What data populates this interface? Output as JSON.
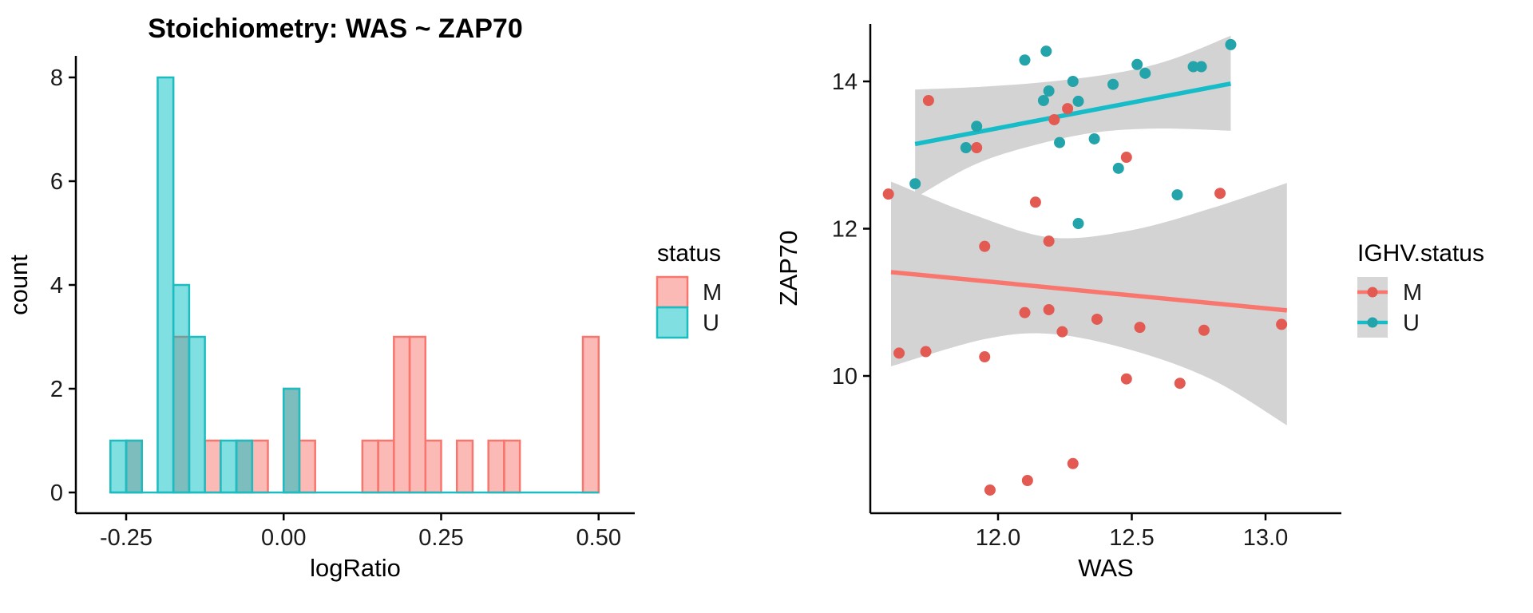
{
  "figure": {
    "background": "#FFFFFF",
    "colors": {
      "axis": "#000000",
      "tick_text": "#1a1a1a",
      "title_text": "#000000",
      "band": "#D3D3D3",
      "m_stroke": "#F8766D",
      "m_fill": "rgba(248,118,109,0.5)",
      "u_stroke": "#1CBCC1",
      "u_fill": "rgba(0,191,196,0.5)",
      "m_point": "#E25A52",
      "u_point": "#23A3AA",
      "m_line": "#F8766D",
      "u_line": "#16BCC7",
      "legend_key_bg": "#D6D6D6"
    }
  },
  "chart_data": [
    {
      "type": "bar",
      "subtype": "histogram",
      "title": "Stoichiometry: WAS ~ ZAP70",
      "xlabel": "logRatio",
      "ylabel": "count",
      "xlim": [
        -0.331,
        0.557
      ],
      "ylim": [
        -0.4,
        8.4
      ],
      "x_tick_values": [
        -0.25,
        0.0,
        0.25,
        0.5
      ],
      "x_tick_labels": [
        "-0.25",
        "0.00",
        "0.25",
        "0.50"
      ],
      "y_tick_values": [
        0,
        2,
        4,
        6,
        8
      ],
      "y_tick_labels": [
        "0",
        "2",
        "4",
        "6",
        "8"
      ],
      "grid": false,
      "bin_width": 0.025,
      "baseline": {
        "from": -0.275,
        "to": 0.5
      },
      "legend": {
        "title": "status",
        "entries": [
          {
            "label": "M",
            "series": "M"
          },
          {
            "label": "U",
            "series": "U"
          }
        ]
      },
      "series": [
        {
          "name": "M",
          "bins": [
            [
              -0.25,
              1
            ],
            [
              -0.175,
              3
            ],
            [
              -0.125,
              1
            ],
            [
              -0.075,
              1
            ],
            [
              -0.05,
              1
            ],
            [
              0.0,
              2
            ],
            [
              0.025,
              1
            ],
            [
              0.125,
              1
            ],
            [
              0.15,
              1
            ],
            [
              0.175,
              3
            ],
            [
              0.2,
              3
            ],
            [
              0.225,
              1
            ],
            [
              0.275,
              1
            ],
            [
              0.325,
              1
            ],
            [
              0.35,
              1
            ],
            [
              0.475,
              3
            ]
          ]
        },
        {
          "name": "U",
          "bins": [
            [
              -0.275,
              1
            ],
            [
              -0.25,
              1
            ],
            [
              -0.2,
              8
            ],
            [
              -0.175,
              4
            ],
            [
              -0.15,
              3
            ],
            [
              -0.1,
              1
            ],
            [
              -0.075,
              1
            ],
            [
              0.0,
              2
            ]
          ]
        }
      ]
    },
    {
      "type": "scatter",
      "title": "",
      "xlabel": "WAS",
      "ylabel": "ZAP70",
      "xlim": [
        11.52,
        13.28
      ],
      "ylim": [
        8.16,
        14.78
      ],
      "x_tick_values": [
        12.0,
        12.5,
        13.0
      ],
      "x_tick_labels": [
        "12.0",
        "12.5",
        "13.0"
      ],
      "y_tick_values": [
        10,
        12,
        14
      ],
      "y_tick_labels": [
        "10",
        "12",
        "14"
      ],
      "grid": false,
      "legend": {
        "title": "IGHV.status",
        "entries": [
          {
            "label": "M",
            "series": "M"
          },
          {
            "label": "U",
            "series": "U"
          }
        ]
      },
      "series": [
        {
          "name": "M",
          "points": [
            [
              11.74,
              13.74
            ],
            [
              12.26,
              13.63
            ],
            [
              12.21,
              13.48
            ],
            [
              11.92,
              13.1
            ],
            [
              12.48,
              12.97
            ],
            [
              11.59,
              12.47
            ],
            [
              12.14,
              12.36
            ],
            [
              12.83,
              12.48
            ],
            [
              12.19,
              11.83
            ],
            [
              11.95,
              11.76
            ],
            [
              12.1,
              10.86
            ],
            [
              12.19,
              10.9
            ],
            [
              12.24,
              10.6
            ],
            [
              12.37,
              10.77
            ],
            [
              12.53,
              10.66
            ],
            [
              12.77,
              10.62
            ],
            [
              13.06,
              10.7
            ],
            [
              11.63,
              10.31
            ],
            [
              11.73,
              10.33
            ],
            [
              11.95,
              10.26
            ],
            [
              12.48,
              9.96
            ],
            [
              12.68,
              9.9
            ],
            [
              11.97,
              8.45
            ],
            [
              12.11,
              8.58
            ],
            [
              12.28,
              8.81
            ]
          ],
          "trend": [
            [
              11.6,
              11.41
            ],
            [
              13.08,
              10.89
            ]
          ],
          "band_top": [
            [
              11.6,
              12.64
            ],
            [
              11.9,
              12.2
            ],
            [
              12.2,
              11.88
            ],
            [
              12.5,
              11.98
            ],
            [
              12.8,
              12.28
            ],
            [
              13.08,
              12.62
            ]
          ],
          "band_bottom": [
            [
              11.6,
              10.13
            ],
            [
              11.95,
              10.5
            ],
            [
              12.2,
              10.57
            ],
            [
              12.5,
              10.35
            ],
            [
              12.8,
              9.95
            ],
            [
              13.08,
              9.33
            ]
          ]
        },
        {
          "name": "U",
          "points": [
            [
              12.1,
              14.29
            ],
            [
              12.18,
              14.41
            ],
            [
              12.52,
              14.23
            ],
            [
              12.55,
              14.11
            ],
            [
              12.73,
              14.2
            ],
            [
              12.76,
              14.2
            ],
            [
              12.87,
              14.5
            ],
            [
              12.28,
              14.0
            ],
            [
              12.43,
              13.96
            ],
            [
              12.19,
              13.87
            ],
            [
              12.17,
              13.74
            ],
            [
              12.3,
              13.73
            ],
            [
              11.92,
              13.39
            ],
            [
              12.36,
              13.22
            ],
            [
              12.23,
              13.17
            ],
            [
              11.88,
              13.1
            ],
            [
              12.45,
              12.82
            ],
            [
              11.69,
              12.61
            ],
            [
              12.67,
              12.46
            ],
            [
              12.3,
              12.07
            ]
          ],
          "trend": [
            [
              11.69,
              13.15
            ],
            [
              12.87,
              13.97
            ]
          ],
          "band_top": [
            [
              11.69,
              13.89
            ],
            [
              11.95,
              13.93
            ],
            [
              12.2,
              14.0
            ],
            [
              12.45,
              14.12
            ],
            [
              12.65,
              14.3
            ],
            [
              12.87,
              14.62
            ]
          ],
          "band_bottom": [
            [
              11.69,
              12.42
            ],
            [
              11.9,
              12.85
            ],
            [
              12.1,
              13.1
            ],
            [
              12.35,
              13.3
            ],
            [
              12.6,
              13.36
            ],
            [
              12.87,
              13.33
            ]
          ]
        }
      ]
    }
  ]
}
